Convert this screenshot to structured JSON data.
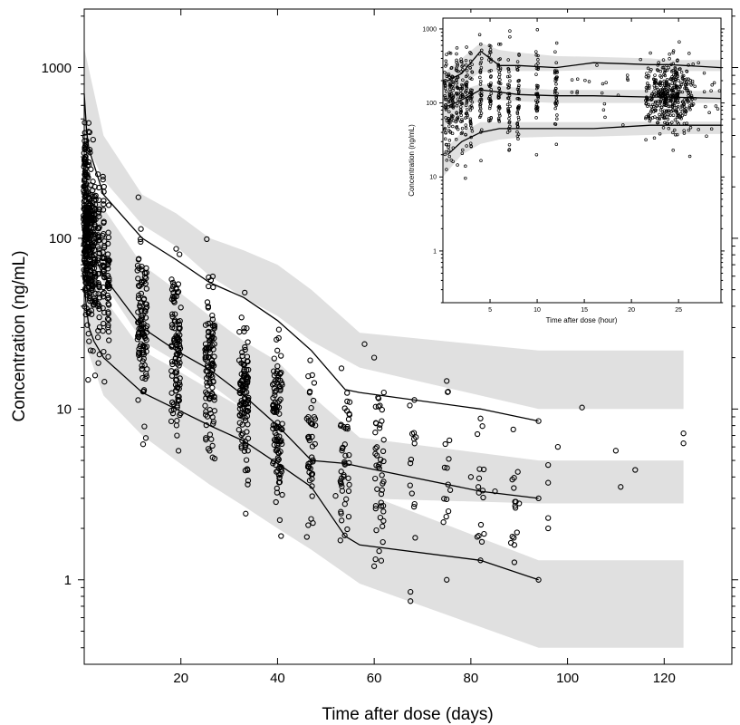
{
  "chart_data": [
    {
      "type": "scatter",
      "title": "",
      "xlabel": "Time after dose (days)",
      "ylabel": "Concentration (ng/mL)",
      "xlim": [
        0,
        134
      ],
      "ylim": [
        0.32,
        2200
      ],
      "yscale": "log",
      "grid": false,
      "xticks": [
        20,
        40,
        60,
        80,
        100,
        120
      ],
      "xtick_labels": [
        "20",
        "40",
        "60",
        "80",
        "100",
        "120"
      ],
      "yticks": [
        1,
        10,
        100,
        1000
      ],
      "ytick_labels": [
        "1",
        "10",
        "100",
        "1000"
      ],
      "colors": {
        "observations": "#000000",
        "prediction_interval": "#e0e0e0",
        "percentile_lines": "#000000"
      },
      "series": [
        {
          "role": "observed_percentile_95",
          "x": [
            0,
            0.5,
            1,
            2,
            4,
            12,
            19,
            26,
            33,
            40,
            47,
            54,
            57,
            82,
            94
          ],
          "y": [
            700,
            420,
            330,
            270,
            180,
            100,
            75,
            55,
            45,
            33,
            22,
            13,
            12.5,
            10,
            8.5
          ]
        },
        {
          "role": "observed_median",
          "x": [
            0,
            0.5,
            1,
            2,
            4,
            12,
            19,
            26,
            33,
            40,
            47,
            54,
            57,
            82,
            94
          ],
          "y": [
            160,
            110,
            95,
            80,
            60,
            30,
            22,
            17,
            12,
            8,
            5,
            4.8,
            4.6,
            3.3,
            3
          ]
        },
        {
          "role": "observed_percentile_5",
          "x": [
            0,
            0.5,
            1,
            2,
            4,
            12,
            19,
            26,
            33,
            40,
            47,
            54,
            57,
            82,
            94
          ],
          "y": [
            55,
            38,
            30,
            25,
            20,
            12.5,
            10,
            8,
            6.5,
            4.8,
            3.5,
            1.8,
            1.6,
            1.3,
            1
          ]
        },
        {
          "role": "predicted_interval_upper",
          "x": [
            0,
            4,
            12,
            19,
            26,
            33,
            40,
            47,
            57,
            94,
            124
          ],
          "lower": [
            380,
            220,
            120,
            90,
            60,
            45,
            35,
            25,
            17.5,
            10,
            10
          ],
          "upper": [
            1300,
            400,
            180,
            140,
            100,
            85,
            70,
            50,
            28,
            22,
            22
          ]
        },
        {
          "role": "predicted_interval_median",
          "x": [
            0,
            4,
            12,
            19,
            26,
            33,
            40,
            47,
            57,
            94,
            124
          ],
          "lower": [
            90,
            55,
            25,
            19,
            14,
            10,
            7,
            4.5,
            3,
            2.8,
            2.8
          ],
          "upper": [
            250,
            150,
            70,
            50,
            35,
            25,
            19,
            12,
            6.8,
            5,
            5
          ]
        },
        {
          "role": "predicted_interval_lower",
          "x": [
            0,
            4,
            12,
            19,
            26,
            33,
            40,
            47,
            57,
            94,
            124
          ],
          "lower": [
            25,
            12,
            7,
            5,
            3.6,
            2.7,
            2,
            1.5,
            0.95,
            0.4,
            0.4
          ],
          "upper": [
            75,
            45,
            22,
            17,
            13,
            10,
            8,
            5.5,
            3.3,
            1.3,
            1.3
          ]
        },
        {
          "role": "observations",
          "note": "sampled at nominal days with spread; late sparse points listed explicitly",
          "x": [
            103,
            110,
            111,
            114,
            124,
            124,
            96,
            96,
            98,
            96,
            96,
            67.5,
            67.5,
            75,
            75,
            82,
            82,
            80,
            90,
            85,
            89,
            52,
            53,
            60,
            60,
            58,
            62
          ],
          "y": [
            10.2,
            5.7,
            3.5,
            4.4,
            7.2,
            6.3,
            4.7,
            3.7,
            6,
            2.3,
            2,
            0.75,
            0.85,
            14.6,
            1,
            8.8,
            1.3,
            4,
            2.8,
            3.3,
            1.6,
            3.1,
            1.7,
            20,
            1.2,
            24,
            12.5
          ]
        }
      ]
    },
    {
      "type": "scatter",
      "title": "",
      "xlabel": "Time after dose (hour)",
      "ylabel": "Concentration (ng/mL)",
      "xlim": [
        0,
        29.5
      ],
      "ylim": [
        0.2,
        1400
      ],
      "yscale": "log",
      "grid": false,
      "xticks": [
        5,
        10,
        15,
        20,
        25
      ],
      "xtick_labels": [
        "5",
        "10",
        "15",
        "20",
        "25"
      ],
      "yticks": [
        1,
        10,
        100,
        1000
      ],
      "ytick_labels": [
        "1",
        "10",
        "100",
        "1000"
      ],
      "series": [
        {
          "role": "observed_percentile_95",
          "x": [
            0.5,
            2,
            4,
            6,
            8,
            12,
            16,
            22,
            24,
            29.5
          ],
          "y": [
            200,
            250,
            500,
            320,
            320,
            300,
            350,
            330,
            330,
            300
          ]
        },
        {
          "role": "observed_median",
          "x": [
            0.5,
            2,
            4,
            6,
            8,
            12,
            16,
            22,
            24,
            29.5
          ],
          "y": [
            90,
            110,
            150,
            140,
            130,
            125,
            125,
            120,
            120,
            115
          ]
        },
        {
          "role": "observed_percentile_5",
          "x": [
            0.5,
            2,
            4,
            6,
            8,
            12,
            16,
            22,
            24,
            29.5
          ],
          "y": [
            20,
            30,
            40,
            45,
            45,
            45,
            45,
            50,
            50,
            50
          ]
        },
        {
          "role": "predicted_interval_upper",
          "x": [
            0,
            2,
            4,
            6,
            8,
            12,
            16,
            22,
            24,
            29.5
          ],
          "lower": [
            100,
            180,
            260,
            270,
            270,
            270,
            280,
            280,
            270,
            270
          ],
          "upper": [
            250,
            400,
            650,
            520,
            480,
            430,
            420,
            400,
            380,
            380
          ]
        },
        {
          "role": "predicted_interval_median",
          "x": [
            0,
            2,
            4,
            6,
            8,
            12,
            16,
            22,
            24,
            29.5
          ],
          "lower": [
            45,
            80,
            110,
            110,
            105,
            100,
            100,
            100,
            100,
            100
          ],
          "upper": [
            100,
            150,
            180,
            170,
            160,
            150,
            150,
            150,
            145,
            145
          ]
        },
        {
          "role": "predicted_interval_lower",
          "x": [
            0,
            2,
            4,
            6,
            8,
            12,
            16,
            22,
            24,
            29.5
          ],
          "lower": [
            10,
            20,
            28,
            32,
            34,
            35,
            35,
            37,
            38,
            38
          ],
          "upper": [
            22,
            40,
            55,
            55,
            55,
            55,
            55,
            56,
            56,
            56
          ]
        }
      ]
    }
  ]
}
